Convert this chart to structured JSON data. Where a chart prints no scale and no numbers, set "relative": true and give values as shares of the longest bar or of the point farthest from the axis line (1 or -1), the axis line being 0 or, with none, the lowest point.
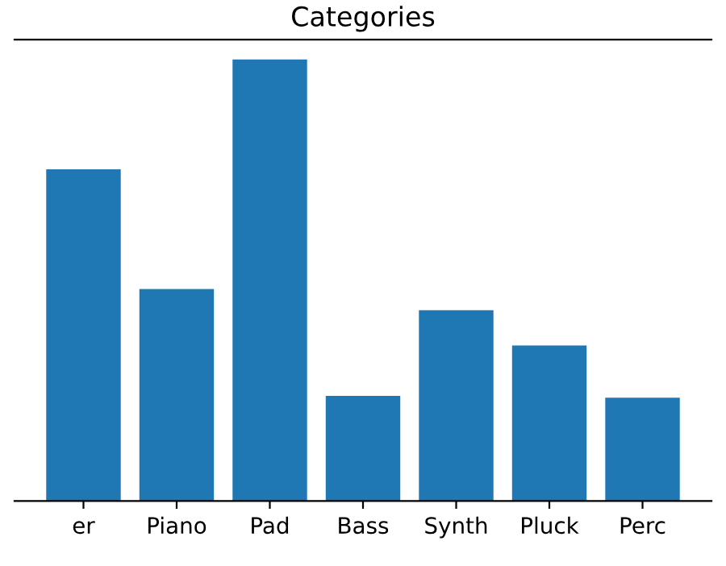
{
  "chart_data": {
    "type": "bar",
    "title": "Categories",
    "relative": true,
    "categories": [
      "er",
      "Piano",
      "Pad",
      "Bass",
      "Synth",
      "Pluck",
      "Perc"
    ],
    "values": [
      0.751,
      0.48,
      1,
      0.238,
      0.432,
      0.352,
      0.234
    ],
    "color": "#1f77b4",
    "grid": false,
    "legend": false
  }
}
